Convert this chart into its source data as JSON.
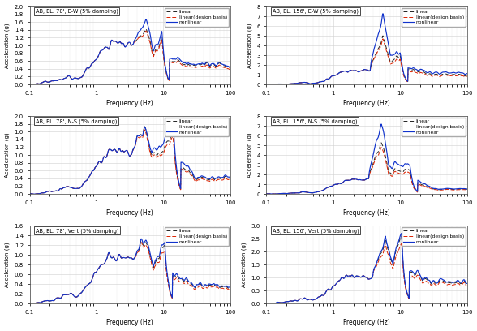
{
  "panels": [
    {
      "title": "AB, EL. 78', E-W (5% damping)",
      "ylabel": "Acceleration (g)",
      "xlabel": "Frequency (Hz)",
      "ylim": [
        0,
        2.0
      ],
      "yticks": [
        0,
        0.2,
        0.4,
        0.6,
        0.8,
        1.0,
        1.2,
        1.4,
        1.6,
        1.8,
        2.0
      ],
      "row": 0,
      "col": 0,
      "plateau": 1.05,
      "peak1_f": 5.5,
      "peak1_nl": 1.65,
      "peak1_l": 1.4,
      "peak1_db": 1.35,
      "peak2_f": 9.5,
      "peak2_nl": 1.35,
      "peak2_l": 1.2,
      "peak2_db": 1.15,
      "flat_nl": 0.52,
      "flat_l": 0.5,
      "flat_db": 0.45
    },
    {
      "title": "AB, EL. 156', E-W (5% damping)",
      "ylabel": "Acceleration (g)",
      "xlabel": "Frequency (Hz)",
      "ylim": [
        0,
        8.0
      ],
      "yticks": [
        0,
        1,
        2,
        3,
        4,
        5,
        6,
        7,
        8
      ],
      "row": 0,
      "col": 1,
      "plateau": 1.4,
      "peak1_f": 5.5,
      "peak1_nl": 7.0,
      "peak1_l": 4.8,
      "peak1_db": 4.5,
      "peak2_f": 10.0,
      "peak2_nl": 3.5,
      "peak2_l": 3.2,
      "peak2_db": 2.8,
      "flat_nl": 1.2,
      "flat_l": 1.0,
      "flat_db": 0.9
    },
    {
      "title": "AB, EL. 78', N-S (5% damping)",
      "ylabel": "Acceleration (g)",
      "xlabel": "Frequency (Hz)",
      "ylim": [
        0,
        2.0
      ],
      "yticks": [
        0,
        0.2,
        0.4,
        0.6,
        0.8,
        1.0,
        1.2,
        1.4,
        1.6,
        1.8,
        2.0
      ],
      "row": 1,
      "col": 0,
      "plateau": 1.1,
      "peak1_f": 5.2,
      "peak1_nl": 1.67,
      "peak1_l": 1.68,
      "peak1_db": 1.6,
      "peak2_f": 14.0,
      "peak2_nl": 1.8,
      "peak2_l": 1.5,
      "peak2_db": 1.4,
      "flat_nl": 0.45,
      "flat_l": 0.42,
      "flat_db": 0.38
    },
    {
      "title": "AB, EL. 156', N-S (5% damping)",
      "ylabel": "Acceleration (g)",
      "xlabel": "Frequency (Hz)",
      "ylim": [
        0,
        8.0
      ],
      "yticks": [
        0,
        1,
        2,
        3,
        4,
        5,
        6,
        7,
        8
      ],
      "row": 1,
      "col": 1,
      "plateau": 1.4,
      "peak1_f": 5.2,
      "peak1_nl": 7.5,
      "peak1_l": 5.5,
      "peak1_db": 5.0,
      "peak2_f": 14.0,
      "peak2_nl": 3.0,
      "peak2_l": 2.5,
      "peak2_db": 2.2,
      "flat_nl": 0.55,
      "flat_l": 0.5,
      "flat_db": 0.45
    },
    {
      "title": "AB, EL. 78', Vert (5% damping)",
      "ylabel": "Acceleration (g)",
      "xlabel": "Frequency (Hz)",
      "ylim": [
        0,
        1.6
      ],
      "yticks": [
        0,
        0.2,
        0.4,
        0.6,
        0.8,
        1.0,
        1.2,
        1.4,
        1.6
      ],
      "row": 2,
      "col": 0,
      "plateau": 0.95,
      "peak1_f": 5.5,
      "peak1_nl": 1.35,
      "peak1_l": 1.3,
      "peak1_db": 1.25,
      "peak2_f": 10.5,
      "peak2_nl": 1.28,
      "peak2_l": 1.22,
      "peak2_db": 1.1,
      "flat_nl": 0.38,
      "flat_l": 0.36,
      "flat_db": 0.33
    },
    {
      "title": "AB, EL. 156', Vert (5% damping)",
      "ylabel": "Acceleration (g)",
      "xlabel": "Frequency (Hz)",
      "ylim": [
        0,
        3.0
      ],
      "yticks": [
        0,
        0.5,
        1.0,
        1.5,
        2.0,
        2.5,
        3.0
      ],
      "row": 2,
      "col": 1,
      "plateau": 1.0,
      "peak1_f": 6.0,
      "peak1_nl": 2.5,
      "peak1_l": 2.4,
      "peak1_db": 2.2,
      "peak2_f": 10.5,
      "peak2_nl": 2.7,
      "peak2_l": 2.6,
      "peak2_db": 2.3,
      "flat_nl": 0.82,
      "flat_l": 0.78,
      "flat_db": 0.72
    }
  ],
  "colors": {
    "linear": "#222222",
    "linear_design": "#dd2200",
    "nonlinear": "#1133cc"
  },
  "legend_labels": [
    "linear",
    "linear(design basis)",
    "nonlinear"
  ]
}
